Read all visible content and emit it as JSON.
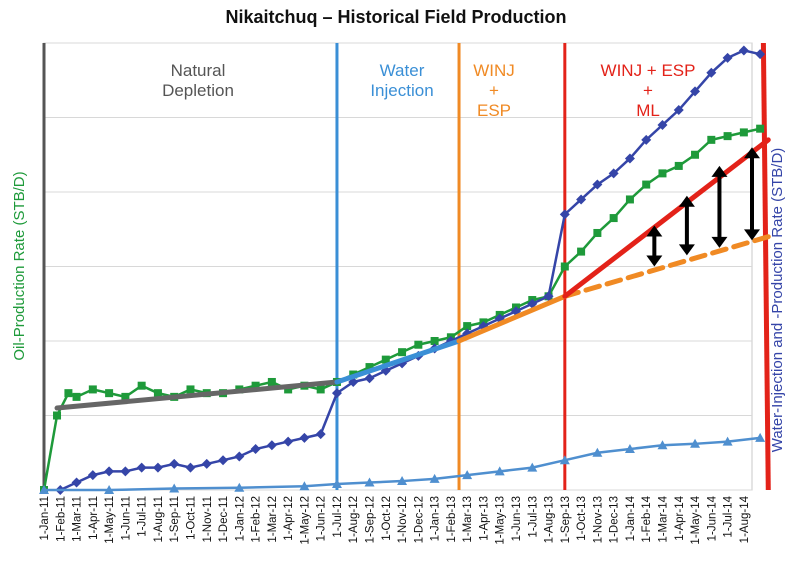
{
  "chart_data": {
    "type": "line",
    "title": "Nikaitchuq – Historical Field Production",
    "ylabel_left": "Oil-Production Rate (STB/D)",
    "ylabel_right": "Water-Injection and -Production Rate (STB/D)",
    "grid": true,
    "ylim": [
      0,
      6
    ],
    "x_tick_labels": [
      "1-Jan-11",
      "1-Feb-11",
      "1-Mar-11",
      "1-Apr-11",
      "1-May-11",
      "1-Jun-11",
      "1-Jul-11",
      "1-Aug-11",
      "1-Sep-11",
      "1-Oct-11",
      "1-Nov-11",
      "1-Dec-11",
      "1-Jan-12",
      "1-Feb-12",
      "1-Mar-12",
      "1-Apr-12",
      "1-May-12",
      "1-Jun-12",
      "1-Jul-12",
      "1-Aug-12",
      "1-Sep-12",
      "1-Oct-12",
      "1-Nov-12",
      "1-Dec-12",
      "1-Jan-13",
      "1-Feb-13",
      "1-Mar-13",
      "1-Apr-13",
      "1-May-13",
      "1-Jun-13",
      "1-Jul-13",
      "1-Aug-13",
      "1-Sep-13",
      "1-Oct-13",
      "1-Nov-13",
      "1-Dec-13",
      "1-Jan-14",
      "1-Feb-14",
      "1-Mar-14",
      "1-Apr-14",
      "1-May-14",
      "1-Jun-14",
      "1-Jul-14",
      "1-Aug-14"
    ],
    "phases": [
      {
        "label": [
          "Natural",
          "Depletion"
        ],
        "color": "#555555",
        "month": 0
      },
      {
        "label": [
          "Water",
          "Injection"
        ],
        "color": "#3a8fd6",
        "month": 18
      },
      {
        "label": [
          "WINJ",
          "+",
          "ESP"
        ],
        "color": "#f08a24",
        "month": 25.5
      },
      {
        "label": [
          "WINJ + ESP",
          "+",
          "ML"
        ],
        "color": "#e32219",
        "month": 32
      }
    ],
    "colors": {
      "oil": "#1e9a3a",
      "water_injection": "#3545a8",
      "water_production": "#4f8fcf",
      "trend_natural": "#666666",
      "trend_water": "#3a8fd6",
      "trend_esp": "#f08a24",
      "trend_ml": "#e32219",
      "arrows": "#000000",
      "divider_end": "#e32219"
    },
    "series": [
      {
        "key": "oil",
        "marker": "square",
        "points": [
          [
            0,
            0
          ],
          [
            0.8,
            1.0
          ],
          [
            1.5,
            1.3
          ],
          [
            2,
            1.25
          ],
          [
            3,
            1.35
          ],
          [
            4,
            1.3
          ],
          [
            5,
            1.25
          ],
          [
            6,
            1.4
          ],
          [
            7,
            1.3
          ],
          [
            8,
            1.25
          ],
          [
            9,
            1.35
          ],
          [
            10,
            1.3
          ],
          [
            11,
            1.3
          ],
          [
            12,
            1.35
          ],
          [
            13,
            1.4
          ],
          [
            14,
            1.45
          ],
          [
            15,
            1.35
          ],
          [
            16,
            1.4
          ],
          [
            17,
            1.35
          ],
          [
            18,
            1.45
          ],
          [
            19,
            1.55
          ],
          [
            20,
            1.65
          ],
          [
            21,
            1.75
          ],
          [
            22,
            1.85
          ],
          [
            23,
            1.95
          ],
          [
            24,
            2.0
          ],
          [
            25,
            2.05
          ],
          [
            26,
            2.2
          ],
          [
            27,
            2.25
          ],
          [
            28,
            2.35
          ],
          [
            29,
            2.45
          ],
          [
            30,
            2.55
          ],
          [
            31,
            2.6
          ],
          [
            32,
            3.0
          ],
          [
            33,
            3.2
          ],
          [
            34,
            3.45
          ],
          [
            35,
            3.65
          ],
          [
            36,
            3.9
          ],
          [
            37,
            4.1
          ],
          [
            38,
            4.25
          ],
          [
            39,
            4.35
          ],
          [
            40,
            4.5
          ],
          [
            41,
            4.7
          ],
          [
            42,
            4.75
          ],
          [
            43,
            4.8
          ],
          [
            44,
            4.85
          ]
        ]
      },
      {
        "key": "water_injection",
        "marker": "diamond",
        "points": [
          [
            1,
            0
          ],
          [
            2,
            0.1
          ],
          [
            3,
            0.2
          ],
          [
            4,
            0.25
          ],
          [
            5,
            0.25
          ],
          [
            6,
            0.3
          ],
          [
            7,
            0.3
          ],
          [
            8,
            0.35
          ],
          [
            9,
            0.3
          ],
          [
            10,
            0.35
          ],
          [
            11,
            0.4
          ],
          [
            12,
            0.45
          ],
          [
            13,
            0.55
          ],
          [
            14,
            0.6
          ],
          [
            15,
            0.65
          ],
          [
            16,
            0.7
          ],
          [
            17,
            0.75
          ],
          [
            18,
            1.3
          ],
          [
            19,
            1.45
          ],
          [
            20,
            1.5
          ],
          [
            21,
            1.6
          ],
          [
            22,
            1.7
          ],
          [
            23,
            1.8
          ],
          [
            24,
            1.9
          ],
          [
            25,
            2.0
          ],
          [
            26,
            2.1
          ],
          [
            27,
            2.2
          ],
          [
            28,
            2.3
          ],
          [
            29,
            2.4
          ],
          [
            30,
            2.5
          ],
          [
            31,
            2.6
          ],
          [
            32,
            3.7
          ],
          [
            33,
            3.9
          ],
          [
            34,
            4.1
          ],
          [
            35,
            4.25
          ],
          [
            36,
            4.45
          ],
          [
            37,
            4.7
          ],
          [
            38,
            4.9
          ],
          [
            39,
            5.1
          ],
          [
            40,
            5.35
          ],
          [
            41,
            5.6
          ],
          [
            42,
            5.8
          ],
          [
            43,
            5.9
          ],
          [
            44,
            5.85
          ]
        ]
      },
      {
        "key": "water_production",
        "marker": "triangle",
        "points": [
          [
            0,
            0
          ],
          [
            4,
            0
          ],
          [
            8,
            0.02
          ],
          [
            12,
            0.03
          ],
          [
            16,
            0.05
          ],
          [
            18,
            0.08
          ],
          [
            20,
            0.1
          ],
          [
            22,
            0.12
          ],
          [
            24,
            0.15
          ],
          [
            26,
            0.2
          ],
          [
            28,
            0.25
          ],
          [
            30,
            0.3
          ],
          [
            32,
            0.4
          ],
          [
            34,
            0.5
          ],
          [
            36,
            0.55
          ],
          [
            38,
            0.6
          ],
          [
            40,
            0.62
          ],
          [
            42,
            0.65
          ],
          [
            44,
            0.7
          ]
        ]
      }
    ],
    "annotations": {
      "trend_lines": [
        {
          "key": "trend_natural",
          "style": "solid",
          "from": [
            0.8,
            1.1
          ],
          "to": [
            18,
            1.45
          ]
        },
        {
          "key": "trend_water",
          "style": "solid",
          "from": [
            18,
            1.45
          ],
          "to": [
            25.5,
            2.0
          ]
        },
        {
          "key": "trend_esp",
          "style": "solid",
          "from": [
            25.5,
            2.0
          ],
          "to": [
            32,
            2.6
          ]
        },
        {
          "key": "trend_esp",
          "style": "dashed",
          "from": [
            32,
            2.6
          ],
          "to": [
            44.5,
            3.4
          ]
        },
        {
          "key": "trend_ml",
          "style": "solid",
          "from": [
            32,
            2.6
          ],
          "to": [
            44.5,
            4.7
          ]
        }
      ],
      "double_arrows": [
        {
          "month": 37.5,
          "from": 3.0,
          "to": 3.55
        },
        {
          "month": 39.5,
          "from": 3.15,
          "to": 3.95
        },
        {
          "month": 41.5,
          "from": 3.25,
          "to": 4.35
        },
        {
          "month": 43.5,
          "from": 3.35,
          "to": 4.6
        }
      ]
    }
  }
}
